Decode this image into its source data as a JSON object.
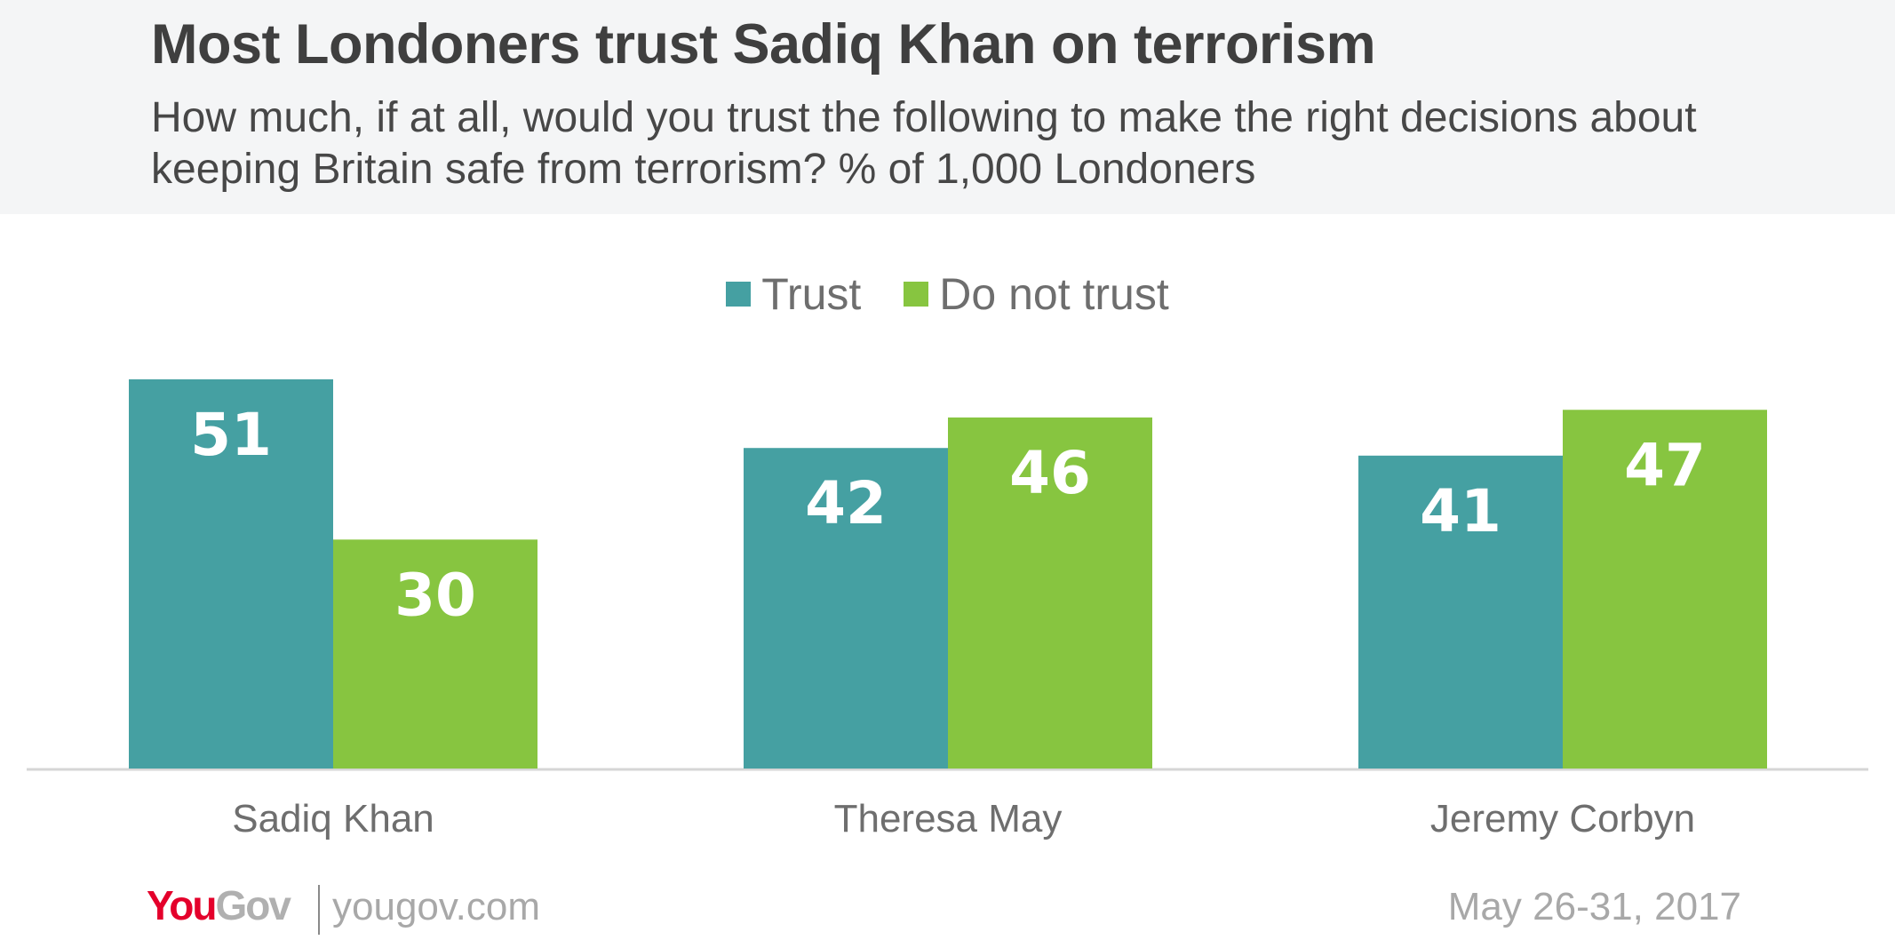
{
  "header": {
    "title": "Most Londoners trust Sadiq Khan on terrorism",
    "subtitle": "How much, if at all, would you trust the following to make the right decisions about keeping Britain safe from terrorism? % of 1,000 Londoners"
  },
  "chart_data": {
    "type": "bar",
    "title": "Most Londoners trust Sadiq Khan on terrorism",
    "subtitle": "How much, if at all, would you trust the following to make the right decisions about keeping Britain safe from terrorism? % of 1,000 Londoners",
    "categories": [
      "Sadiq Khan",
      "Theresa May",
      "Jeremy Corbyn"
    ],
    "series": [
      {
        "name": "Trust",
        "values": [
          51,
          42,
          41
        ],
        "color": "#45a0a2"
      },
      {
        "name": "Do not trust",
        "values": [
          30,
          46,
          47
        ],
        "color": "#87c540"
      }
    ],
    "xlabel": "",
    "ylabel": "",
    "ylim": [
      0,
      55
    ],
    "legend": "top-center",
    "grid": false,
    "data_labels": true
  },
  "footer": {
    "logo_you": "You",
    "logo_gov": "Gov",
    "url": "yougov.com",
    "date": "May 26-31, 2017"
  },
  "colors": {
    "trust": "#45a0a2",
    "do_not_trust": "#87c540",
    "header_bg": "#f4f5f6",
    "brand_red": "#e4002b"
  }
}
